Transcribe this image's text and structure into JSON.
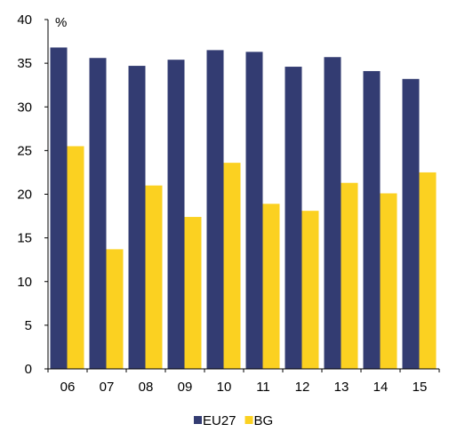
{
  "chart_data": {
    "type": "bar",
    "categories": [
      "06",
      "07",
      "08",
      "09",
      "10",
      "11",
      "12",
      "13",
      "14",
      "15"
    ],
    "series": [
      {
        "name": "EU27",
        "color": "#333c72",
        "values": [
          36.8,
          35.6,
          34.7,
          35.4,
          36.5,
          36.3,
          34.6,
          35.7,
          34.1,
          33.2
        ]
      },
      {
        "name": "BG",
        "color": "#fbd121",
        "values": [
          25.5,
          13.7,
          21.0,
          17.4,
          23.6,
          18.9,
          18.1,
          21.3,
          20.1,
          22.5
        ]
      }
    ],
    "ylabel": "%",
    "ylim": [
      0,
      40
    ],
    "yticks": [
      0,
      5,
      10,
      15,
      20,
      25,
      30,
      35,
      40
    ],
    "grid": false,
    "legend": "bottom"
  }
}
